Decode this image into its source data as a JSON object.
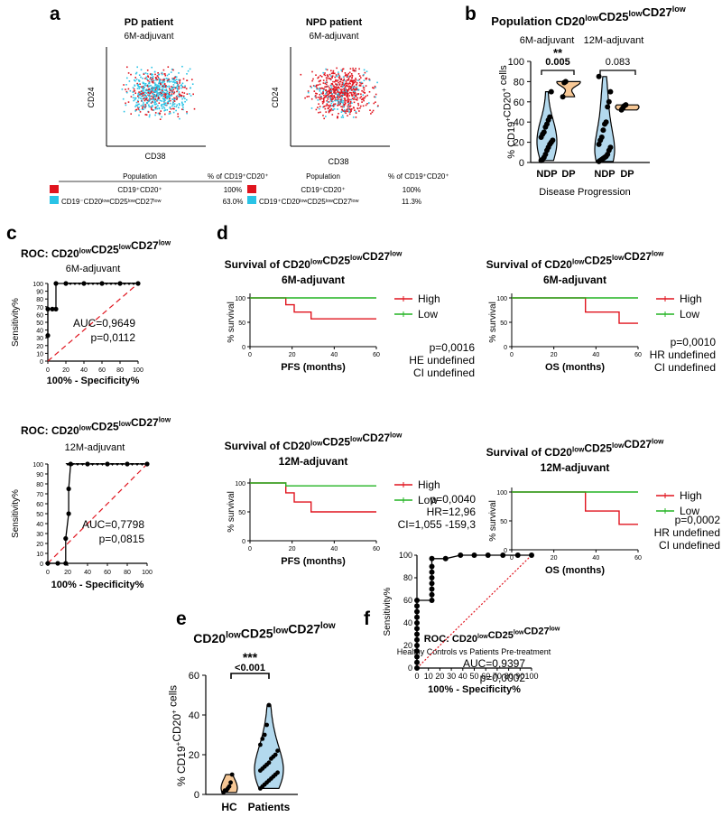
{
  "panel_labels": {
    "a": "a",
    "b": "b",
    "c": "c",
    "d": "d",
    "e": "e",
    "f": "f"
  },
  "panel_a": {
    "flow_plots": [
      {
        "title": "PD patient",
        "subtitle": "6M-adjuvant",
        "ylabel": "CD24",
        "xlabel": "CD38"
      },
      {
        "title": "NPD patient",
        "subtitle": "6M-adjuvant",
        "ylabel": "CD24",
        "xlabel": "CD38"
      }
    ],
    "tables": [
      {
        "col_population": "Population",
        "col_percent": "% of CD19⁺CD20⁺",
        "rows": [
          {
            "color": "#e0141e",
            "population": "CD19⁺CD20⁺",
            "percent": "100%"
          },
          {
            "color": "#29c3e6",
            "population": "CD19⁻CD20ˡᵒʷCD25ˡᵒʷCD27ˡᵒʷ",
            "percent": "63.0%"
          }
        ]
      },
      {
        "col_population": "Population",
        "col_percent": "% of CD19⁺CD20⁺",
        "rows": [
          {
            "color": "#e0141e",
            "population": "CD19⁺CD20⁺",
            "percent": "100%"
          },
          {
            "color": "#29c3e6",
            "population": "CD19⁺CD20ˡᵒʷCD25ˡᵒʷCD27ˡᵒʷ",
            "percent": "11.3%"
          }
        ]
      }
    ]
  },
  "chart_data": [
    {
      "id": "b",
      "type": "violin",
      "title": "Population CD20lowCD25lowCD27low",
      "xlabel": "Disease Progression",
      "ylabel": "% CD19+CD20+ cells",
      "ylim": [
        0,
        100
      ],
      "yticks": [
        0,
        20,
        40,
        60,
        80,
        100
      ],
      "groups": [
        {
          "label": "NDP",
          "timepoint": "6M-adjuvant",
          "color": "#b3d9ee",
          "values": [
            2,
            3,
            5,
            8,
            12,
            15,
            18,
            20,
            22,
            25,
            28,
            30,
            35,
            38,
            42,
            45,
            70
          ]
        },
        {
          "label": "DP",
          "timepoint": "6M-adjuvant",
          "color": "#f7c896",
          "values": [
            65,
            79,
            80
          ]
        },
        {
          "label": "NDP",
          "timepoint": "12M-adjuvant",
          "color": "#b3d9ee",
          "values": [
            1,
            2,
            3,
            4,
            5,
            6,
            8,
            12,
            15,
            18,
            22,
            25,
            32,
            38,
            40,
            55,
            60,
            70,
            85
          ]
        },
        {
          "label": "DP",
          "timepoint": "12M-adjuvant",
          "color": "#f7c896",
          "values": [
            52,
            54,
            56,
            57
          ]
        }
      ],
      "comparisons": [
        {
          "timepoint": "6M-adjuvant",
          "stars": "**",
          "p": "0.005"
        },
        {
          "timepoint": "12M-adjuvant",
          "stars": "",
          "p": "0.083"
        }
      ]
    },
    {
      "id": "c1",
      "type": "roc",
      "title": "ROC: CD20lowCD25lowCD27low",
      "subtitle": "6M-adjuvant",
      "xlabel": "100% - Specificity%",
      "ylabel": "Sensitivity%",
      "xlim": [
        0,
        100
      ],
      "ylim": [
        0,
        100
      ],
      "xticks": [
        0,
        20,
        40,
        60,
        80,
        100
      ],
      "yticks": [
        0,
        10,
        20,
        30,
        40,
        50,
        60,
        70,
        80,
        90,
        100
      ],
      "points": [
        [
          0,
          33
        ],
        [
          0,
          67
        ],
        [
          5,
          67
        ],
        [
          9,
          67
        ],
        [
          9,
          100
        ],
        [
          20,
          100
        ],
        [
          40,
          100
        ],
        [
          60,
          100
        ],
        [
          80,
          100
        ],
        [
          100,
          100
        ]
      ],
      "auc": "AUC=0,9649",
      "p": "p=0,0112"
    },
    {
      "id": "c2",
      "type": "roc",
      "title": "ROC: CD20lowCD25lowCD27low",
      "subtitle": "12M-adjuvant",
      "xlabel": "100% - Specificity%",
      "ylabel": "Sensitivity%",
      "xlim": [
        0,
        100
      ],
      "ylim": [
        0,
        100
      ],
      "xticks": [
        0,
        20,
        40,
        60,
        80,
        100
      ],
      "yticks": [
        0,
        10,
        20,
        30,
        40,
        50,
        60,
        70,
        80,
        90,
        100
      ],
      "points": [
        [
          0,
          0
        ],
        [
          10,
          0
        ],
        [
          18,
          0
        ],
        [
          18,
          25
        ],
        [
          21,
          50
        ],
        [
          21,
          75
        ],
        [
          23,
          100
        ],
        [
          40,
          100
        ],
        [
          60,
          100
        ],
        [
          80,
          100
        ],
        [
          100,
          100
        ]
      ],
      "auc": "AUC=0,7798",
      "p": "p=0,0815"
    },
    {
      "id": "d1",
      "type": "kaplan-meier",
      "title": "Survival of CD20lowCD25lowCD27low",
      "subtitle": "6M-adjuvant",
      "xlabel": "PFS (months)",
      "ylabel": "% survival",
      "xlim": [
        0,
        60
      ],
      "ylim": [
        0,
        100
      ],
      "xticks": [
        0,
        20,
        40,
        60
      ],
      "yticks": [
        0,
        50,
        100
      ],
      "series": [
        {
          "name": "High",
          "color": "#e0141e",
          "steps": [
            [
              0,
              100
            ],
            [
              17,
              100
            ],
            [
              17,
              86
            ],
            [
              21,
              86
            ],
            [
              21,
              71
            ],
            [
              29,
              71
            ],
            [
              29,
              57
            ],
            [
              60,
              57
            ]
          ]
        },
        {
          "name": "Low",
          "color": "#22b422",
          "steps": [
            [
              0,
              100
            ],
            [
              60,
              100
            ]
          ]
        }
      ],
      "stats": [
        "p=0,0016",
        "HE undefined",
        "CI undefined"
      ]
    },
    {
      "id": "d2",
      "type": "kaplan-meier",
      "title": "Survival of CD20lowCD25lowCD27low",
      "subtitle": "6M-adjuvant",
      "xlabel": "OS (months)",
      "ylabel": "% survival",
      "xlim": [
        0,
        60
      ],
      "ylim": [
        0,
        100
      ],
      "xticks": [
        0,
        20,
        40,
        60
      ],
      "yticks": [
        0,
        50,
        100
      ],
      "series": [
        {
          "name": "High",
          "color": "#e0141e",
          "steps": [
            [
              0,
              100
            ],
            [
              35,
              100
            ],
            [
              35,
              71
            ],
            [
              51,
              71
            ],
            [
              51,
              48
            ],
            [
              60,
              48
            ]
          ]
        },
        {
          "name": "Low",
          "color": "#22b422",
          "steps": [
            [
              0,
              100
            ],
            [
              60,
              100
            ]
          ]
        }
      ],
      "stats": [
        "p=0,0010",
        "HR undefined",
        "CI undefined"
      ]
    },
    {
      "id": "d3",
      "type": "kaplan-meier",
      "title": "Survival of CD20lowCD25lowCD27low",
      "subtitle": "12M-adjuvant",
      "xlabel": "PFS (months)",
      "ylabel": "% survival",
      "xlim": [
        0,
        60
      ],
      "ylim": [
        0,
        100
      ],
      "xticks": [
        0,
        20,
        40,
        60
      ],
      "yticks": [
        0,
        50,
        100
      ],
      "series": [
        {
          "name": "High",
          "color": "#e0141e",
          "steps": [
            [
              0,
              100
            ],
            [
              17,
              100
            ],
            [
              17,
              83
            ],
            [
              21,
              83
            ],
            [
              21,
              67
            ],
            [
              29,
              67
            ],
            [
              29,
              50
            ],
            [
              60,
              50
            ]
          ]
        },
        {
          "name": "Low",
          "color": "#22b422",
          "steps": [
            [
              0,
              100
            ],
            [
              17,
              100
            ],
            [
              17,
              95
            ],
            [
              60,
              95
            ]
          ]
        }
      ],
      "stats": [
        "p=0,0040",
        "HR=12,96",
        "CI=1,055 -159,3"
      ]
    },
    {
      "id": "d4",
      "type": "kaplan-meier",
      "title": "Survival of CD20lowCD25lowCD27low",
      "subtitle": "12M-adjuvant",
      "xlabel": "OS (months)",
      "ylabel": "% survival",
      "xlim": [
        0,
        60
      ],
      "ylim": [
        0,
        100
      ],
      "xticks": [
        0,
        20,
        40,
        60
      ],
      "yticks": [
        0,
        50,
        100
      ],
      "series": [
        {
          "name": "High",
          "color": "#e0141e",
          "steps": [
            [
              0,
              100
            ],
            [
              35,
              100
            ],
            [
              35,
              67
            ],
            [
              51,
              67
            ],
            [
              51,
              44
            ],
            [
              60,
              44
            ]
          ]
        },
        {
          "name": "Low",
          "color": "#22b422",
          "steps": [
            [
              0,
              100
            ],
            [
              60,
              100
            ]
          ]
        }
      ],
      "stats": [
        "p=0,0002",
        "HR undefined",
        "CI undefined"
      ]
    },
    {
      "id": "e",
      "type": "violin",
      "title": "CD20lowCD25lowCD27low",
      "ylabel": "% CD19+CD20+ cells",
      "ylim": [
        0,
        60
      ],
      "yticks": [
        0,
        20,
        40,
        60
      ],
      "groups": [
        {
          "label": "HC",
          "color": "#f7c896",
          "values": [
            1,
            2,
            2,
            3,
            4,
            6,
            10
          ]
        },
        {
          "label": "Patients",
          "color": "#b3d9ee",
          "values": [
            3,
            4,
            5,
            6,
            7,
            8,
            9,
            10,
            11,
            12,
            13,
            14,
            15,
            16,
            18,
            19,
            20,
            22,
            25,
            28,
            30,
            35,
            45
          ]
        }
      ],
      "comparisons": [
        {
          "stars": "***",
          "p": "<0.001"
        }
      ]
    },
    {
      "id": "f",
      "type": "roc",
      "title": "ROC: CD20lowCD25lowCD27low",
      "subtitle": "Healthy Controls vs Patients Pre-treatment",
      "xlabel": "100% - Specificity%",
      "ylabel": "Sensitivity%",
      "xlim": [
        0,
        100
      ],
      "ylim": [
        0,
        100
      ],
      "xticks": [
        0,
        10,
        20,
        30,
        40,
        50,
        60,
        70,
        80,
        90,
        100
      ],
      "yticks": [
        0,
        20,
        40,
        60,
        80,
        100
      ],
      "points": [
        [
          0,
          0
        ],
        [
          0,
          5
        ],
        [
          0,
          10
        ],
        [
          0,
          15
        ],
        [
          0,
          20
        ],
        [
          0,
          25
        ],
        [
          0,
          30
        ],
        [
          0,
          35
        ],
        [
          0,
          40
        ],
        [
          0,
          45
        ],
        [
          0,
          50
        ],
        [
          0,
          55
        ],
        [
          0,
          60
        ],
        [
          13,
          60
        ],
        [
          13,
          65
        ],
        [
          13,
          70
        ],
        [
          13,
          75
        ],
        [
          13,
          80
        ],
        [
          13,
          85
        ],
        [
          13,
          90
        ],
        [
          13,
          97
        ],
        [
          25,
          97
        ],
        [
          38,
          100
        ],
        [
          50,
          100
        ],
        [
          62,
          100
        ],
        [
          75,
          100
        ],
        [
          88,
          100
        ],
        [
          100,
          100
        ]
      ],
      "auc": "AUC=0,9397",
      "p": "p=0,0002"
    }
  ]
}
